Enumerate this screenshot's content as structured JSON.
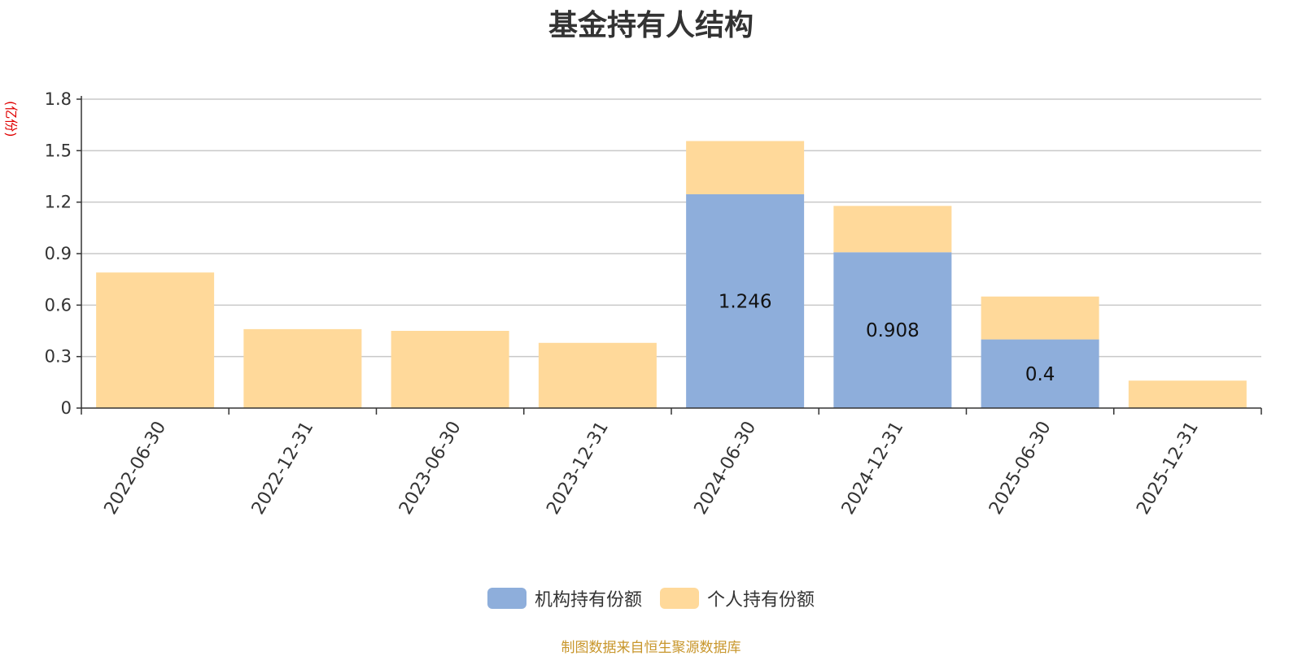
{
  "chart_data": {
    "type": "bar",
    "stacked": true,
    "title": "基金持有人结构",
    "unit_label": "(亿份)",
    "categories": [
      "2022-06-30",
      "2022-12-31",
      "2023-06-30",
      "2023-12-31",
      "2024-06-30",
      "2024-12-31",
      "2025-06-30",
      "2025-12-31"
    ],
    "series": [
      {
        "name": "机构持有份额",
        "color": "#8eaedb",
        "values": [
          0,
          0,
          0,
          0,
          1.246,
          0.908,
          0.4,
          0
        ],
        "labels": [
          "",
          "",
          "",
          "",
          "1.246",
          "0.908",
          "0.4",
          ""
        ]
      },
      {
        "name": "个人持有份额",
        "color": "#ffd99a",
        "values": [
          0.79,
          0.46,
          0.45,
          0.38,
          0.31,
          0.27,
          0.25,
          0.16
        ]
      }
    ],
    "yticks": [
      "0",
      "0.3",
      "0.6",
      "0.9",
      "1.2",
      "1.5",
      "1.8"
    ],
    "ylim": [
      0,
      1.8
    ],
    "grid": true,
    "legend_position": "bottom"
  },
  "source_note": "制图数据来自恒生聚源数据库"
}
